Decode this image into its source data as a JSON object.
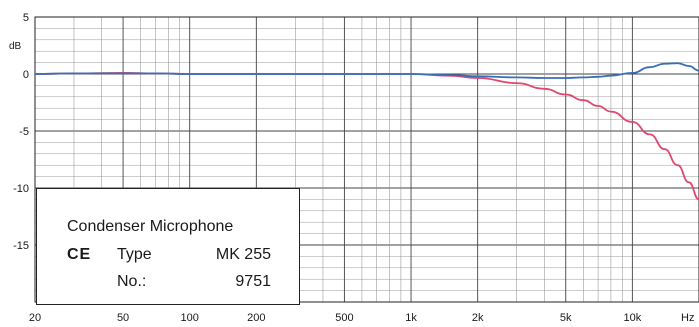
{
  "chart_data": {
    "type": "line",
    "title": "",
    "xlabel": "",
    "ylabel": "dB",
    "x_unit": "Hz",
    "x_scale": "log",
    "xlim": [
      20,
      20000
    ],
    "ylim": [
      -20,
      5
    ],
    "x_ticks": [
      {
        "value": 20,
        "label": "20"
      },
      {
        "value": 50,
        "label": "50"
      },
      {
        "value": 100,
        "label": "100"
      },
      {
        "value": 200,
        "label": "200"
      },
      {
        "value": 500,
        "label": "500"
      },
      {
        "value": 1000,
        "label": "1k"
      },
      {
        "value": 2000,
        "label": "2k"
      },
      {
        "value": 5000,
        "label": "5k"
      },
      {
        "value": 10000,
        "label": "10k"
      }
    ],
    "y_ticks": [
      {
        "value": 5,
        "label": "5"
      },
      {
        "value": 0,
        "label": "0"
      },
      {
        "value": -5,
        "label": "-5"
      },
      {
        "value": -10,
        "label": "-10"
      },
      {
        "value": -15,
        "label": "-15"
      }
    ],
    "grid": true,
    "series": [
      {
        "color": "#e0486f",
        "x": [
          20,
          30,
          50,
          70,
          100,
          200,
          500,
          1000,
          1500,
          2000,
          3000,
          4000,
          5000,
          6000,
          7000,
          8000,
          10000,
          12000,
          14000,
          16000,
          18000,
          20000
        ],
        "y": [
          0,
          0.05,
          0.1,
          0.05,
          0,
          0,
          0,
          0,
          -0.15,
          -0.35,
          -0.8,
          -1.3,
          -1.8,
          -2.3,
          -2.8,
          -3.3,
          -4.2,
          -5.3,
          -6.6,
          -8.0,
          -9.5,
          -11.0
        ]
      },
      {
        "color": "#3a6fb7",
        "x": [
          20,
          30,
          50,
          70,
          100,
          200,
          500,
          1000,
          1500,
          2000,
          3000,
          4000,
          5000,
          6000,
          7000,
          8000,
          10000,
          12000,
          14000,
          16000,
          18000,
          20000
        ],
        "y": [
          0,
          0.05,
          0.05,
          0.05,
          0,
          0,
          0,
          0,
          -0.1,
          -0.2,
          -0.3,
          -0.35,
          -0.35,
          -0.3,
          -0.25,
          -0.15,
          0.1,
          0.6,
          0.9,
          0.95,
          0.7,
          0.3
        ]
      }
    ]
  },
  "info": {
    "title": "Condenser Microphone",
    "ce": "CE",
    "type_label": "Type",
    "type_value": "MK 255",
    "no_label": "No.:",
    "no_value": "9751"
  }
}
